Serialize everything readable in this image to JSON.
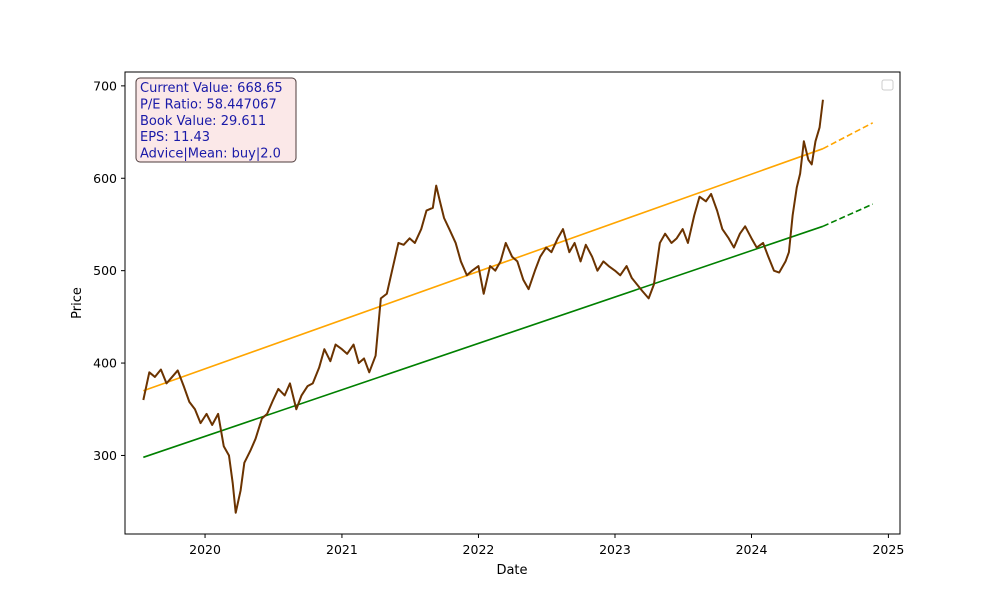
{
  "chart_data": {
    "type": "line",
    "title": "",
    "xlabel": "Date",
    "ylabel": "Price",
    "xlim": [
      "2019-06-01",
      "2025-02-01"
    ],
    "ylim": [
      215,
      715
    ],
    "x_ticks": [
      "2020",
      "2021",
      "2022",
      "2023",
      "2024",
      "2025"
    ],
    "y_ticks": [
      300,
      400,
      500,
      600,
      700
    ],
    "grid": false,
    "legend": "upper right (empty)",
    "colors": {
      "price": "#6b3300",
      "upper_trend": "#ffa500",
      "lower_trend": "#008000",
      "info_text": "#1a1aa8",
      "info_bg": "#fbe8e8",
      "info_border": "#4d3b3b"
    },
    "info_box": {
      "lines": [
        "Current Value: 668.65",
        "P/E Ratio: 58.447067",
        "Book Value: 29.611",
        "EPS: 11.43",
        "Advice|Mean: buy|2.0"
      ]
    },
    "series": [
      {
        "style": "solid",
        "color": "#6b3300",
        "points": [
          [
            "2019-07-20",
            360
          ],
          [
            "2019-08-05",
            390
          ],
          [
            "2019-08-20",
            385
          ],
          [
            "2019-09-05",
            393
          ],
          [
            "2019-09-20",
            378
          ],
          [
            "2019-10-05",
            385
          ],
          [
            "2019-10-20",
            392
          ],
          [
            "2019-11-05",
            375
          ],
          [
            "2019-11-20",
            358
          ],
          [
            "2019-12-05",
            350
          ],
          [
            "2019-12-20",
            335
          ],
          [
            "2020-01-05",
            345
          ],
          [
            "2020-01-20",
            333
          ],
          [
            "2020-02-05",
            345
          ],
          [
            "2020-02-20",
            310
          ],
          [
            "2020-03-05",
            300
          ],
          [
            "2020-03-15",
            270
          ],
          [
            "2020-03-23",
            238
          ],
          [
            "2020-04-05",
            262
          ],
          [
            "2020-04-15",
            292
          ],
          [
            "2020-05-01",
            305
          ],
          [
            "2020-05-15",
            318
          ],
          [
            "2020-06-01",
            340
          ],
          [
            "2020-06-15",
            345
          ],
          [
            "2020-07-01",
            360
          ],
          [
            "2020-07-15",
            372
          ],
          [
            "2020-08-01",
            365
          ],
          [
            "2020-08-15",
            378
          ],
          [
            "2020-09-01",
            350
          ],
          [
            "2020-09-15",
            365
          ],
          [
            "2020-10-01",
            375
          ],
          [
            "2020-10-15",
            378
          ],
          [
            "2020-11-01",
            395
          ],
          [
            "2020-11-15",
            415
          ],
          [
            "2020-12-01",
            402
          ],
          [
            "2020-12-15",
            420
          ],
          [
            "2021-01-01",
            415
          ],
          [
            "2021-01-15",
            410
          ],
          [
            "2021-02-01",
            420
          ],
          [
            "2021-02-15",
            400
          ],
          [
            "2021-03-01",
            405
          ],
          [
            "2021-03-15",
            390
          ],
          [
            "2021-04-01",
            408
          ],
          [
            "2021-04-15",
            470
          ],
          [
            "2021-05-01",
            475
          ],
          [
            "2021-05-15",
            500
          ],
          [
            "2021-06-01",
            530
          ],
          [
            "2021-06-15",
            528
          ],
          [
            "2021-07-01",
            535
          ],
          [
            "2021-07-15",
            530
          ],
          [
            "2021-08-01",
            545
          ],
          [
            "2021-08-15",
            565
          ],
          [
            "2021-09-01",
            568
          ],
          [
            "2021-09-10",
            592
          ],
          [
            "2021-09-20",
            575
          ],
          [
            "2021-10-01",
            557
          ],
          [
            "2021-10-15",
            545
          ],
          [
            "2021-11-01",
            530
          ],
          [
            "2021-11-15",
            510
          ],
          [
            "2021-12-01",
            495
          ],
          [
            "2021-12-15",
            500
          ],
          [
            "2022-01-01",
            505
          ],
          [
            "2022-01-15",
            475
          ],
          [
            "2022-02-01",
            505
          ],
          [
            "2022-02-15",
            500
          ],
          [
            "2022-03-01",
            510
          ],
          [
            "2022-03-15",
            530
          ],
          [
            "2022-04-01",
            515
          ],
          [
            "2022-04-15",
            510
          ],
          [
            "2022-05-01",
            490
          ],
          [
            "2022-05-15",
            480
          ],
          [
            "2022-06-01",
            500
          ],
          [
            "2022-06-15",
            515
          ],
          [
            "2022-07-01",
            525
          ],
          [
            "2022-07-15",
            520
          ],
          [
            "2022-08-01",
            535
          ],
          [
            "2022-08-15",
            545
          ],
          [
            "2022-09-01",
            520
          ],
          [
            "2022-09-15",
            530
          ],
          [
            "2022-10-01",
            510
          ],
          [
            "2022-10-15",
            528
          ],
          [
            "2022-11-01",
            515
          ],
          [
            "2022-11-15",
            500
          ],
          [
            "2022-12-01",
            510
          ],
          [
            "2022-12-15",
            505
          ],
          [
            "2023-01-01",
            500
          ],
          [
            "2023-01-15",
            495
          ],
          [
            "2023-02-01",
            505
          ],
          [
            "2023-02-15",
            492
          ],
          [
            "2023-03-01",
            485
          ],
          [
            "2023-03-15",
            478
          ],
          [
            "2023-04-01",
            470
          ],
          [
            "2023-04-15",
            485
          ],
          [
            "2023-05-01",
            530
          ],
          [
            "2023-05-15",
            540
          ],
          [
            "2023-06-01",
            530
          ],
          [
            "2023-06-15",
            535
          ],
          [
            "2023-07-01",
            545
          ],
          [
            "2023-07-15",
            530
          ],
          [
            "2023-08-01",
            560
          ],
          [
            "2023-08-15",
            580
          ],
          [
            "2023-09-01",
            575
          ],
          [
            "2023-09-15",
            583
          ],
          [
            "2023-10-01",
            565
          ],
          [
            "2023-10-15",
            545
          ],
          [
            "2023-11-01",
            535
          ],
          [
            "2023-11-15",
            525
          ],
          [
            "2023-12-01",
            540
          ],
          [
            "2023-12-15",
            548
          ],
          [
            "2024-01-01",
            535
          ],
          [
            "2024-01-15",
            525
          ],
          [
            "2024-02-01",
            530
          ],
          [
            "2024-02-15",
            515
          ],
          [
            "2024-03-01",
            500
          ],
          [
            "2024-03-15",
            498
          ],
          [
            "2024-04-01",
            510
          ],
          [
            "2024-04-10",
            520
          ],
          [
            "2024-04-20",
            560
          ],
          [
            "2024-05-01",
            590
          ],
          [
            "2024-05-10",
            605
          ],
          [
            "2024-05-20",
            640
          ],
          [
            "2024-06-01",
            620
          ],
          [
            "2024-06-10",
            615
          ],
          [
            "2024-06-20",
            640
          ],
          [
            "2024-07-01",
            655
          ],
          [
            "2024-07-10",
            685
          ]
        ]
      },
      {
        "style": "solid",
        "color": "#ffa500",
        "points": [
          [
            "2019-07-20",
            370
          ],
          [
            "2024-07-10",
            632
          ]
        ]
      },
      {
        "style": "dashed",
        "color": "#ffa500",
        "points": [
          [
            "2024-07-10",
            632
          ],
          [
            "2024-11-20",
            660
          ]
        ]
      },
      {
        "style": "solid",
        "color": "#008000",
        "points": [
          [
            "2019-07-20",
            298
          ],
          [
            "2024-07-10",
            548
          ]
        ]
      },
      {
        "style": "dashed",
        "color": "#008000",
        "points": [
          [
            "2024-07-10",
            548
          ],
          [
            "2024-11-20",
            572
          ]
        ]
      }
    ]
  }
}
